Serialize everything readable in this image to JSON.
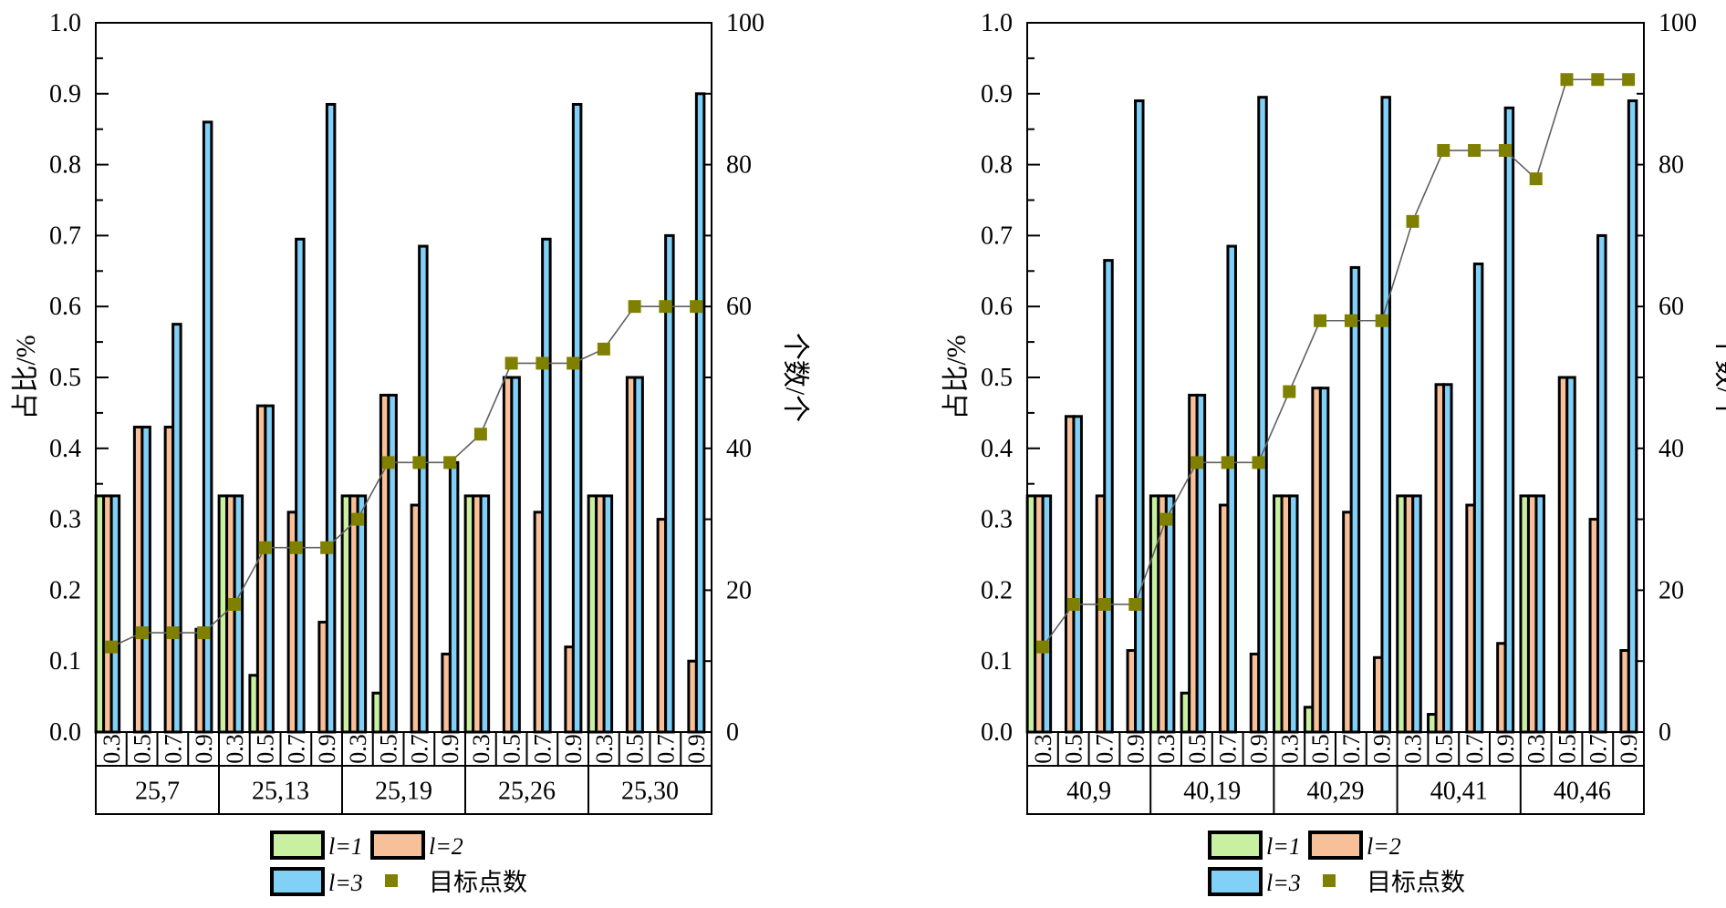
{
  "chart_data": [
    {
      "type": "bar",
      "ylabel_left": "占比/%",
      "ylabel_right": "个数/个",
      "ylim_left": [
        0,
        1.0
      ],
      "ylim_right": [
        0,
        100
      ],
      "yticks_left": [
        "0.0",
        "0.1",
        "0.2",
        "0.3",
        "0.4",
        "0.5",
        "0.6",
        "0.7",
        "0.8",
        "0.9",
        "1.0"
      ],
      "yticks_right": [
        "0",
        "20",
        "40",
        "60",
        "80",
        "100"
      ],
      "groups": [
        "25,7",
        "25,13",
        "25,19",
        "25,26",
        "25,30"
      ],
      "subcategories": [
        "0.3",
        "0.5",
        "0.7",
        "0.9"
      ],
      "series": [
        {
          "name": "l=1",
          "color": "#c8f0a0",
          "values": [
            [
              0.333,
              0.0,
              0.0,
              0.0
            ],
            [
              0.333,
              0.08,
              0.0,
              0.0
            ],
            [
              0.333,
              0.055,
              0.0,
              0.0
            ],
            [
              0.333,
              0.0,
              0.0,
              0.0
            ],
            [
              0.333,
              0.0,
              0.0,
              0.0
            ]
          ]
        },
        {
          "name": "l=2",
          "color": "#f8c098",
          "values": [
            [
              0.333,
              0.43,
              0.43,
              0.145
            ],
            [
              0.333,
              0.46,
              0.31,
              0.155
            ],
            [
              0.333,
              0.475,
              0.32,
              0.11
            ],
            [
              0.333,
              0.5,
              0.31,
              0.12
            ],
            [
              0.333,
              0.5,
              0.3,
              0.1
            ]
          ]
        },
        {
          "name": "l=3",
          "color": "#80d0f8",
          "values": [
            [
              0.333,
              0.43,
              0.575,
              0.86
            ],
            [
              0.333,
              0.46,
              0.695,
              0.885
            ],
            [
              0.333,
              0.475,
              0.685,
              0.38
            ],
            [
              0.333,
              0.5,
              0.695,
              0.885
            ],
            [
              0.333,
              0.5,
              0.7,
              0.9
            ]
          ]
        }
      ],
      "target_series": {
        "name": "目标点数",
        "color": "#808000",
        "values": [
          [
            12,
            14,
            14,
            14
          ],
          [
            18,
            26,
            26,
            26
          ],
          [
            30,
            38,
            38,
            38
          ],
          [
            42,
            52,
            52,
            52
          ],
          [
            54,
            60,
            60,
            60
          ]
        ]
      },
      "legend": [
        {
          "label": "l=1"
        },
        {
          "label": "l=2"
        },
        {
          "label": "l=3"
        },
        {
          "label": "目标点数"
        }
      ],
      "legend_position": "bottom"
    },
    {
      "type": "bar",
      "ylabel_left": "占比/%",
      "ylabel_right": "个数/个",
      "ylim_left": [
        0,
        1.0
      ],
      "ylim_right": [
        0,
        100
      ],
      "yticks_left": [
        "0.0",
        "0.1",
        "0.2",
        "0.3",
        "0.4",
        "0.5",
        "0.6",
        "0.7",
        "0.8",
        "0.9",
        "1.0"
      ],
      "yticks_right": [
        "0",
        "20",
        "40",
        "60",
        "80",
        "100"
      ],
      "groups": [
        "40,9",
        "40,19",
        "40,29",
        "40,41",
        "40,46"
      ],
      "subcategories": [
        "0.3",
        "0.5",
        "0.7",
        "0.9"
      ],
      "series": [
        {
          "name": "l=1",
          "color": "#c8f0a0",
          "values": [
            [
              0.333,
              0.0,
              0.0,
              0.0
            ],
            [
              0.333,
              0.055,
              0.0,
              0.0
            ],
            [
              0.333,
              0.035,
              0.0,
              0.0
            ],
            [
              0.333,
              0.025,
              0.0,
              0.0
            ],
            [
              0.333,
              0.0,
              0.0,
              0.0
            ]
          ]
        },
        {
          "name": "l=2",
          "color": "#f8c098",
          "values": [
            [
              0.333,
              0.445,
              0.333,
              0.115
            ],
            [
              0.333,
              0.475,
              0.32,
              0.11
            ],
            [
              0.333,
              0.485,
              0.31,
              0.105
            ],
            [
              0.333,
              0.49,
              0.32,
              0.125
            ],
            [
              0.333,
              0.5,
              0.3,
              0.115
            ]
          ]
        },
        {
          "name": "l=3",
          "color": "#80d0f8",
          "values": [
            [
              0.333,
              0.445,
              0.665,
              0.89
            ],
            [
              0.333,
              0.475,
              0.685,
              0.895
            ],
            [
              0.333,
              0.485,
              0.655,
              0.895
            ],
            [
              0.333,
              0.49,
              0.66,
              0.88
            ],
            [
              0.333,
              0.5,
              0.7,
              0.89
            ]
          ]
        }
      ],
      "target_series": {
        "name": "目标点数",
        "color": "#808000",
        "values": [
          [
            12,
            18,
            18,
            18
          ],
          [
            30,
            38,
            38,
            38
          ],
          [
            48,
            58,
            58,
            58
          ],
          [
            72,
            82,
            82,
            82
          ],
          [
            78,
            92,
            92,
            92
          ]
        ]
      },
      "legend": [
        {
          "label": "l=1"
        },
        {
          "label": "l=2"
        },
        {
          "label": "l=3"
        },
        {
          "label": "目标点数"
        }
      ],
      "legend_position": "bottom"
    }
  ]
}
